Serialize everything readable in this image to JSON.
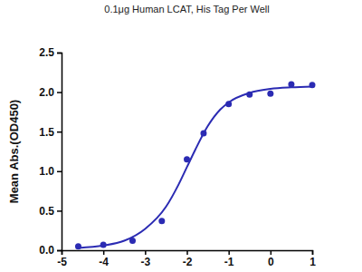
{
  "chart_data": {
    "type": "scatter",
    "title": "0.1μg Human LCAT, His Tag Per Well",
    "y_label": "Mean Abs.(OD450)",
    "xlim": [
      -5,
      1
    ],
    "xticks": [
      -5,
      -4,
      -3,
      -2,
      -1,
      0,
      1
    ],
    "ylim": [
      0,
      2.5
    ],
    "yticks": [
      {
        "value": 0,
        "label": "0.0"
      },
      {
        "value": 0.5,
        "label": "0.5"
      },
      {
        "value": 1,
        "label": "1.0"
      },
      {
        "value": 1.5,
        "label": "1.5"
      },
      {
        "value": 2,
        "label": "2.0"
      },
      {
        "value": 2.5,
        "label": "2.5"
      }
    ],
    "grid": false,
    "series": [
      {
        "type": "scatter",
        "marker": "circle",
        "color": "#2b2bb3",
        "x": [
          -4.6,
          -4.0,
          -3.3,
          -2.6,
          -2.0,
          -1.6,
          -1.0,
          -0.5,
          0.0,
          0.5,
          1.0
        ],
        "values": [
          0.05,
          0.07,
          0.12,
          0.37,
          1.15,
          1.48,
          1.85,
          1.97,
          1.98,
          2.1,
          2.09
        ]
      },
      {
        "type": "line",
        "line_style": "solid",
        "color": "#2b2bb3",
        "x": [
          -4.6,
          -4.0,
          -3.5,
          -3.0,
          -2.5,
          -2.2,
          -2.0,
          -1.8,
          -1.5,
          -1.2,
          -1.0,
          -0.5,
          0.0,
          0.5,
          1.0
        ],
        "values": [
          0.03,
          0.06,
          0.12,
          0.27,
          0.55,
          0.83,
          1.05,
          1.27,
          1.57,
          1.78,
          1.87,
          1.99,
          2.04,
          2.06,
          2.07
        ]
      }
    ]
  }
}
